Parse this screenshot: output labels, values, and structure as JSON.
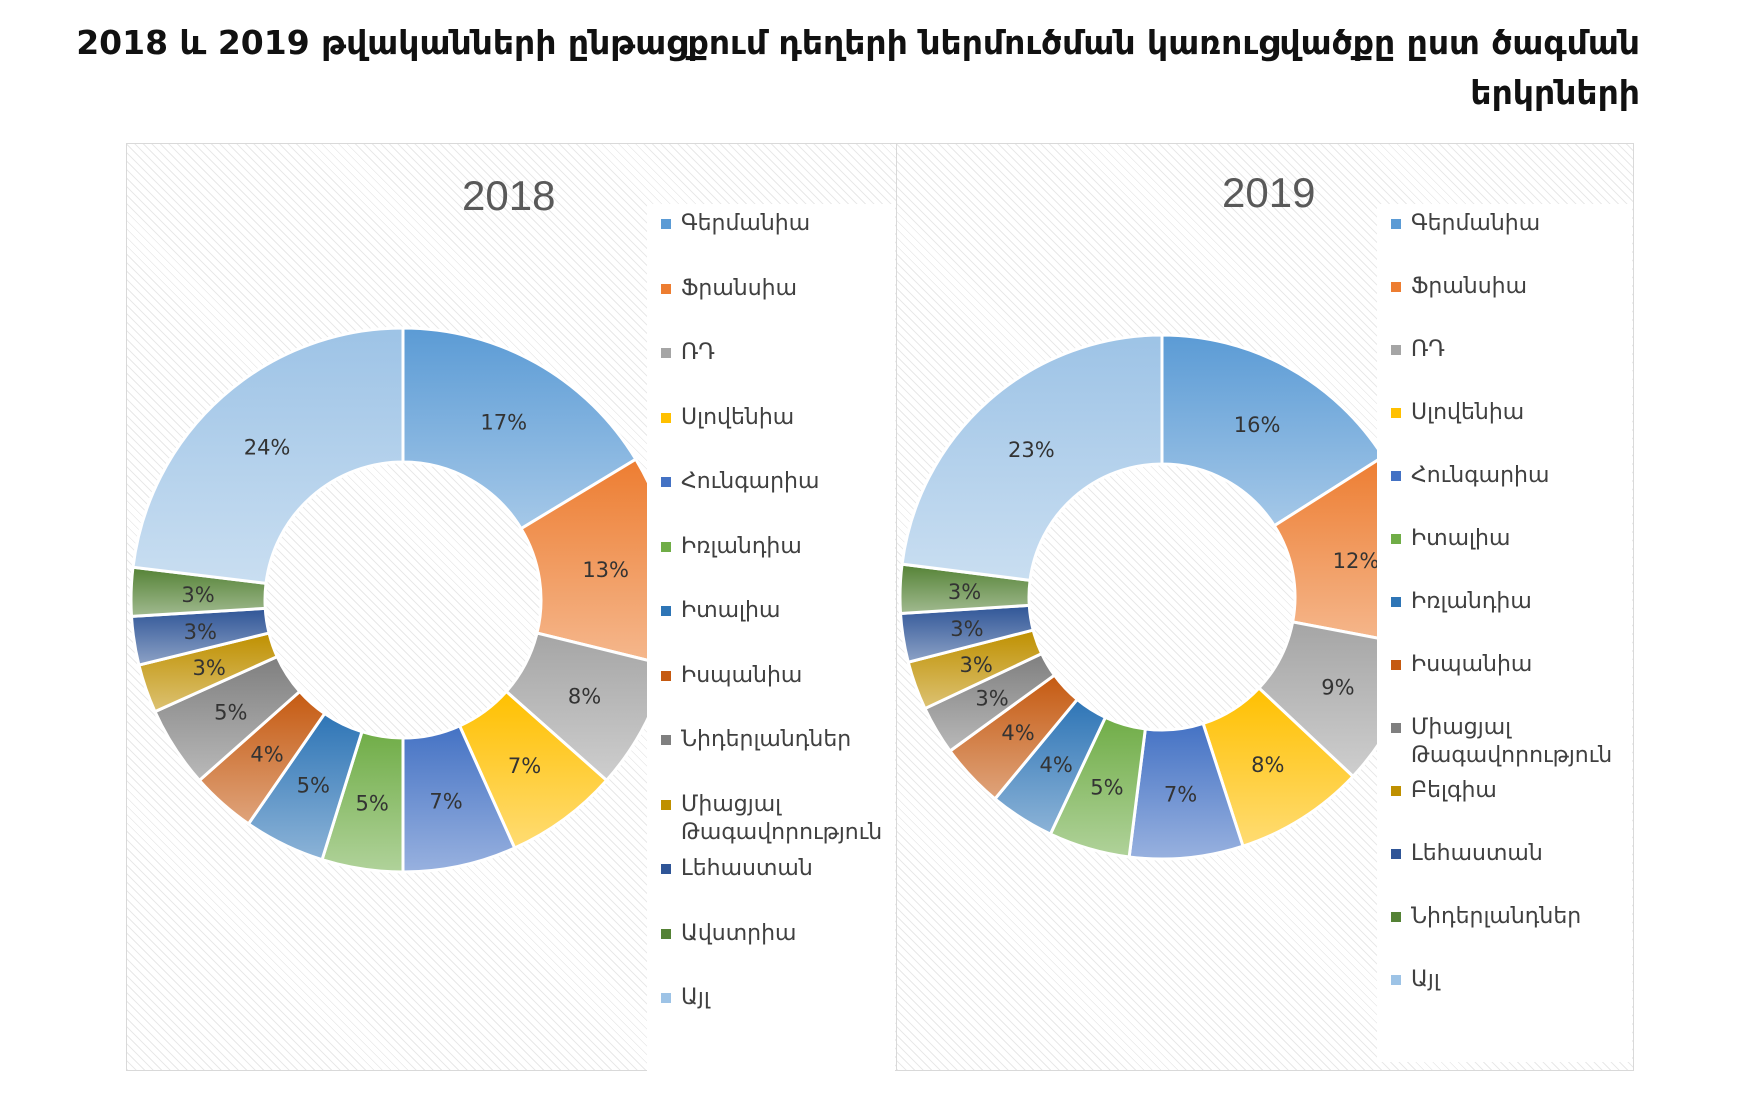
{
  "title": "2018 և 2019 թվականների ընթացքում դեղերի ներմուծման կառուցվածքը ըստ ծագման երկրների",
  "chart_data": [
    {
      "type": "pie",
      "donut": true,
      "title": "2018",
      "legend_position": "right",
      "categories": [
        "Գերմանիա",
        "Ֆրանսիա",
        "ՌԴ",
        "Սլովենիա",
        "Հունգարիա",
        "Իռլանդիա",
        "Իտալիա",
        "Իսպանիա",
        "Նիդերլանդներ",
        "Միացյալ Թագավորություն",
        "Լեհաստան",
        "Ավստրիա",
        "Այլ"
      ],
      "values": [
        17,
        13,
        8,
        7,
        7,
        5,
        5,
        4,
        5,
        3,
        3,
        3,
        24
      ],
      "labels": [
        "17%",
        "13%",
        "8%",
        "7%",
        "7%",
        "5%",
        "5%",
        "4%",
        "5%",
        "3%",
        "3%",
        "3%",
        "24%"
      ],
      "colors": [
        "#5b9bd5",
        "#ed7d31",
        "#a5a5a5",
        "#ffc000",
        "#4472c4",
        "#70ad47",
        "#2e75b6",
        "#c55a11",
        "#7f7f7f",
        "#bf9000",
        "#2f5597",
        "#548235",
        "#9dc3e6"
      ]
    },
    {
      "type": "pie",
      "donut": true,
      "title": "2019",
      "legend_position": "right",
      "categories": [
        "Գերմանիա",
        "Ֆրանսիա",
        "ՌԴ",
        "Սլովենիա",
        "Հունգարիա",
        "Իտալիա",
        "Իռլանդիա",
        "Իսպանիա",
        "Միացյալ Թագավորություն",
        "Բելգիա",
        "Լեհաստան",
        "Նիդերլանդներ",
        "Այլ"
      ],
      "values": [
        16,
        12,
        9,
        8,
        7,
        5,
        4,
        4,
        3,
        3,
        3,
        3,
        23
      ],
      "labels": [
        "16%",
        "12%",
        "9%",
        "8%",
        "7%",
        "5%",
        "4%",
        "4%",
        "3%",
        "3%",
        "3%",
        "3%",
        "23%"
      ],
      "colors": [
        "#5b9bd5",
        "#ed7d31",
        "#a5a5a5",
        "#ffc000",
        "#4472c4",
        "#70ad47",
        "#2e75b6",
        "#c55a11",
        "#7f7f7f",
        "#bf9000",
        "#2f5597",
        "#548235",
        "#9dc3e6"
      ]
    }
  ]
}
